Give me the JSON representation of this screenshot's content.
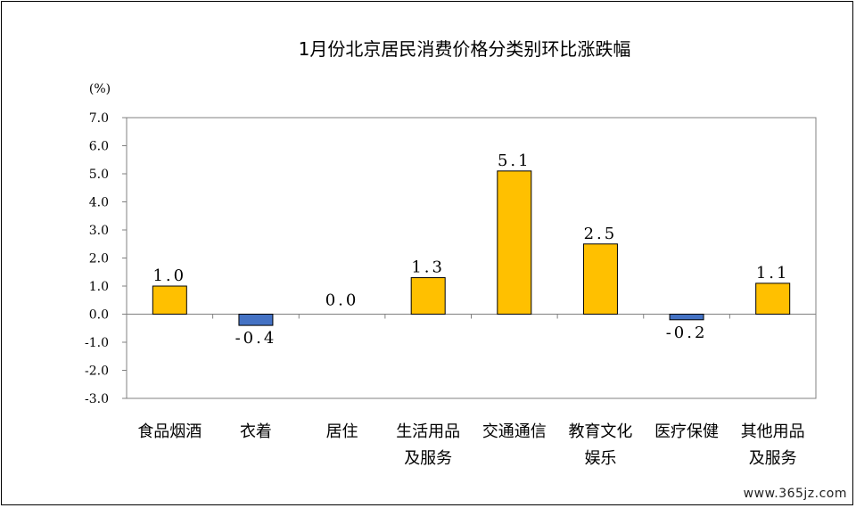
{
  "chart_data": {
    "type": "bar",
    "title": "1月份北京居民消费价格分类别环比涨跌幅",
    "unit_label": "(%)",
    "categories": [
      [
        "食品烟酒"
      ],
      [
        "衣着"
      ],
      [
        "居住"
      ],
      [
        "生活用品",
        "及服务"
      ],
      [
        "交通通信"
      ],
      [
        "教育文化",
        "娱乐"
      ],
      [
        "医疗保健"
      ],
      [
        "其他用品",
        "及服务"
      ]
    ],
    "values": [
      1.0,
      -0.4,
      0.0,
      1.3,
      5.1,
      2.5,
      -0.2,
      1.1
    ],
    "value_labels": [
      "1.0",
      "-0.4",
      "0.0",
      "1.3",
      "5.1",
      "2.5",
      "-0.2",
      "1.1"
    ],
    "ylim": [
      -3.0,
      7.0
    ],
    "yticks": [
      "7.0",
      "6.0",
      "5.0",
      "4.0",
      "3.0",
      "2.0",
      "1.0",
      "0.0",
      "-1.0",
      "-2.0",
      "-3.0"
    ],
    "ytick_values": [
      7,
      6,
      5,
      4,
      3,
      2,
      1,
      0,
      -1,
      -2,
      -3
    ],
    "grid": false,
    "colors": {
      "positive": "#FFC000",
      "negative": "#4472C4",
      "axis": "#808080",
      "border": "#000000"
    }
  },
  "watermark": "www.365jz.com"
}
